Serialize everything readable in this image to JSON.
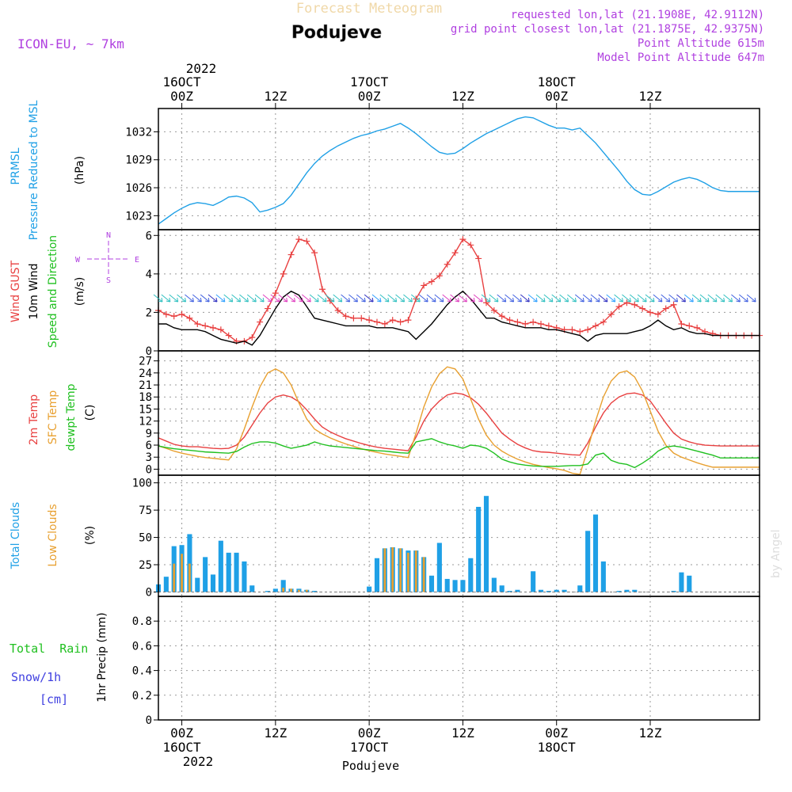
{
  "header": {
    "banner": "Forecast Meteogram",
    "location": "Podujeve",
    "model": "ICON-EU, ~ 7km",
    "requested": "requested lon,lat (21.1908E, 42.9112N)",
    "grid_point": "grid point closest lon,lat (21.1875E, 42.9375N)",
    "point_alt": "Point Altitude 615m",
    "model_alt": "Model Point Altitude 647m",
    "watermark": "by Angel",
    "footer": "Podujeve"
  },
  "colors": {
    "pressure": "#1fa0e6",
    "gust": "#e84040",
    "wind": "#000000",
    "temp2m": "#e84040",
    "sfc": "#e8a030",
    "dew": "#20c020",
    "total_cloud": "#1fa0e6",
    "low_cloud": "#e8a030",
    "rain": "#20c020",
    "snow": "#4040e0",
    "meta": "#b040e0"
  },
  "time_axis": {
    "hours_total": 77,
    "top_year": "2022",
    "bottom_year": "2022",
    "labels": [
      {
        "h": 3,
        "t1": "16OCT",
        "t2": "00Z"
      },
      {
        "h": 15,
        "t1": "",
        "t2": "12Z"
      },
      {
        "h": 27,
        "t1": "17OCT",
        "t2": "00Z"
      },
      {
        "h": 39,
        "t1": "",
        "t2": "12Z"
      },
      {
        "h": 51,
        "t1": "18OCT",
        "t2": "00Z"
      },
      {
        "h": 63,
        "t1": "",
        "t2": "12Z"
      }
    ]
  },
  "compass": {
    "n": "N",
    "s": "S",
    "w": "W",
    "e": "E"
  },
  "chart_data": [
    {
      "type": "line",
      "title": "PRMSL Pressure Reduced to MSL",
      "ylabel": "(hPa)",
      "label_lines": [
        "PRMSL",
        "Pressure Reduced to MSL"
      ],
      "ylim": [
        1021.5,
        1034.5
      ],
      "yticks": [
        1023,
        1026,
        1029,
        1032
      ],
      "series": [
        {
          "name": "PRMSL",
          "color": "#1fa0e6",
          "values": [
            1022.1,
            1022.7,
            1023.3,
            1023.8,
            1024.2,
            1024.4,
            1024.3,
            1024.1,
            1024.5,
            1025.0,
            1025.1,
            1024.9,
            1024.4,
            1023.4,
            1023.6,
            1023.9,
            1024.3,
            1025.2,
            1026.4,
            1027.6,
            1028.6,
            1029.4,
            1030.0,
            1030.5,
            1030.9,
            1031.3,
            1031.6,
            1031.8,
            1032.1,
            1032.3,
            1032.6,
            1032.9,
            1032.4,
            1031.8,
            1031.1,
            1030.4,
            1029.8,
            1029.6,
            1029.7,
            1030.2,
            1030.8,
            1031.3,
            1031.8,
            1032.2,
            1032.6,
            1033.0,
            1033.4,
            1033.6,
            1033.5,
            1033.1,
            1032.7,
            1032.4,
            1032.4,
            1032.2,
            1032.4,
            1031.6,
            1030.8,
            1029.8,
            1028.8,
            1027.8,
            1026.7,
            1025.8,
            1025.3,
            1025.2,
            1025.6,
            1026.1,
            1026.6,
            1026.9,
            1027.1,
            1026.9,
            1026.5,
            1026.0,
            1025.7,
            1025.6,
            1025.6,
            1025.6,
            1025.6,
            1025.6
          ]
        }
      ]
    },
    {
      "type": "line",
      "title": "Wind GUST / 10m Wind Speed and Direction",
      "ylabel": "(m/s)",
      "label_lines": [
        "Wind GUST",
        "10m Wind",
        "Speed and Direction"
      ],
      "ylim": [
        0,
        6.3
      ],
      "yticks": [
        0,
        2,
        4,
        6
      ],
      "series": [
        {
          "name": "Wind GUST",
          "color": "#e84040",
          "marker": "+",
          "values": [
            2.1,
            1.9,
            1.8,
            1.9,
            1.7,
            1.4,
            1.3,
            1.2,
            1.1,
            0.8,
            0.5,
            0.5,
            0.7,
            1.5,
            2.2,
            3.0,
            4.0,
            5.0,
            5.8,
            5.7,
            5.1,
            3.2,
            2.6,
            2.1,
            1.8,
            1.7,
            1.7,
            1.6,
            1.5,
            1.4,
            1.6,
            1.5,
            1.6,
            2.7,
            3.4,
            3.6,
            3.9,
            4.5,
            5.1,
            5.8,
            5.5,
            4.8,
            2.5,
            2.1,
            1.8,
            1.6,
            1.5,
            1.4,
            1.5,
            1.4,
            1.3,
            1.2,
            1.1,
            1.1,
            1.0,
            1.1,
            1.3,
            1.5,
            1.9,
            2.3,
            2.5,
            2.4,
            2.2,
            2.0,
            1.9,
            2.2,
            2.4,
            1.4,
            1.3,
            1.2,
            1.0,
            0.9,
            0.8,
            0.8,
            0.8,
            0.8,
            0.8,
            0.8
          ]
        },
        {
          "name": "10m Wind",
          "color": "#000000",
          "values": [
            1.4,
            1.4,
            1.2,
            1.1,
            1.1,
            1.1,
            1.0,
            0.8,
            0.6,
            0.5,
            0.4,
            0.5,
            0.3,
            0.8,
            1.5,
            2.2,
            2.8,
            3.1,
            2.9,
            2.3,
            1.7,
            1.6,
            1.5,
            1.4,
            1.3,
            1.3,
            1.3,
            1.3,
            1.2,
            1.2,
            1.2,
            1.1,
            1.0,
            0.6,
            1.0,
            1.4,
            1.9,
            2.4,
            2.8,
            3.1,
            2.7,
            2.2,
            1.7,
            1.7,
            1.5,
            1.4,
            1.3,
            1.2,
            1.2,
            1.2,
            1.1,
            1.1,
            1.0,
            0.9,
            0.8,
            0.5,
            0.8,
            0.9,
            0.9,
            0.9,
            0.9,
            1.0,
            1.1,
            1.3,
            1.6,
            1.3,
            1.1,
            1.2,
            1.0,
            0.9,
            0.9,
            0.8,
            0.8,
            0.8,
            0.8,
            0.8,
            0.8,
            0.8
          ]
        }
      ]
    },
    {
      "type": "line",
      "title": "2m Temp / SFC Temp / dewpt Temp",
      "ylabel": "(C)",
      "label_lines": [
        "2m Temp",
        "SFC Temp",
        "dewpt Temp"
      ],
      "ylim": [
        -1.5,
        29.5
      ],
      "yticks": [
        0,
        3,
        6,
        9,
        12,
        15,
        18,
        21,
        24,
        27
      ],
      "series": [
        {
          "name": "2m Temp",
          "color": "#e84040",
          "values": [
            7.8,
            7.0,
            6.2,
            5.8,
            5.6,
            5.6,
            5.4,
            5.2,
            5.1,
            5.2,
            6.0,
            8.0,
            11.0,
            14.0,
            16.5,
            18.0,
            18.5,
            18.0,
            16.8,
            14.8,
            12.5,
            10.5,
            9.3,
            8.4,
            7.6,
            7.0,
            6.4,
            5.9,
            5.5,
            5.2,
            5.0,
            4.8,
            4.6,
            8.0,
            12.0,
            15.0,
            17.0,
            18.5,
            19.0,
            18.7,
            17.8,
            16.2,
            14.0,
            11.5,
            9.0,
            7.5,
            6.2,
            5.3,
            4.6,
            4.3,
            4.2,
            4.0,
            3.8,
            3.6,
            3.5,
            6.5,
            10.5,
            14.0,
            16.5,
            18.0,
            18.8,
            19.0,
            18.5,
            17.0,
            14.3,
            11.5,
            9.0,
            7.5,
            6.8,
            6.3,
            6.0,
            5.9,
            5.8,
            5.8,
            5.8,
            5.8,
            5.8,
            5.8
          ]
        },
        {
          "name": "SFC Temp",
          "color": "#e8a030",
          "values": [
            5.8,
            5.2,
            4.5,
            4.0,
            3.6,
            3.2,
            2.9,
            2.7,
            2.5,
            2.3,
            5.0,
            10.0,
            15.5,
            20.5,
            24.0,
            25.0,
            24.0,
            21.0,
            16.5,
            12.5,
            10.0,
            8.8,
            7.8,
            7.0,
            6.3,
            5.7,
            5.1,
            4.6,
            4.2,
            3.8,
            3.5,
            3.2,
            2.9,
            9.0,
            15.5,
            20.5,
            23.8,
            25.5,
            25.0,
            22.5,
            17.5,
            12.5,
            8.5,
            6.0,
            4.5,
            3.4,
            2.5,
            1.8,
            1.2,
            0.8,
            0.4,
            0.1,
            -0.3,
            -1.0,
            -1.3,
            5.0,
            12.0,
            18.0,
            22.0,
            24.0,
            24.5,
            23.0,
            19.5,
            14.5,
            9.5,
            6.0,
            4.0,
            3.0,
            2.3,
            1.6,
            1.0,
            0.5,
            0.5,
            0.5,
            0.5,
            0.5,
            0.5,
            0.5
          ]
        },
        {
          "name": "dewpt Temp",
          "color": "#20c020",
          "values": [
            5.8,
            5.4,
            5.1,
            4.9,
            4.7,
            4.5,
            4.3,
            4.2,
            4.1,
            4.0,
            4.4,
            5.5,
            6.4,
            6.8,
            6.8,
            6.5,
            5.8,
            5.2,
            5.6,
            6.0,
            6.8,
            6.2,
            5.8,
            5.6,
            5.4,
            5.2,
            5.0,
            4.8,
            4.6,
            4.5,
            4.3,
            4.1,
            4.0,
            6.8,
            7.2,
            7.6,
            6.8,
            6.2,
            5.8,
            5.2,
            6.0,
            5.8,
            5.2,
            4.0,
            2.5,
            1.8,
            1.3,
            1.0,
            0.8,
            0.7,
            0.7,
            0.7,
            0.8,
            0.9,
            0.9,
            1.3,
            3.5,
            4.0,
            2.2,
            1.5,
            1.2,
            0.4,
            1.5,
            2.8,
            4.5,
            5.5,
            5.8,
            5.5,
            5.0,
            4.5,
            4.0,
            3.5,
            2.8,
            2.8,
            2.8,
            2.8,
            2.8,
            2.8
          ]
        }
      ]
    },
    {
      "type": "bar",
      "title": "Total Clouds / Low Clouds",
      "ylabel": "(%)",
      "label_lines": [
        "Total Clouds",
        "Low Clouds"
      ],
      "ylim": [
        -4,
        107
      ],
      "yticks": [
        0,
        25,
        50,
        75,
        100
      ],
      "series": [
        {
          "name": "Total Clouds",
          "color": "#1fa0e6",
          "values": [
            7,
            14,
            42,
            43,
            53,
            13,
            32,
            16,
            47,
            36,
            36,
            28,
            6,
            0,
            1,
            3,
            11,
            3,
            3,
            2,
            1,
            0,
            0,
            0,
            0,
            0,
            0,
            5,
            31,
            40,
            41,
            40,
            38,
            38,
            32,
            15,
            45,
            12,
            11,
            11,
            31,
            78,
            88,
            13,
            6,
            1,
            2,
            0,
            19,
            2,
            1,
            2,
            2,
            0,
            6,
            56,
            71,
            28,
            0,
            1,
            2,
            2,
            0,
            0,
            0,
            0,
            1,
            18,
            15,
            0,
            0,
            0,
            0,
            0,
            0,
            0,
            0
          ]
        },
        {
          "name": "Low Clouds",
          "color": "#e8a030",
          "values": [
            0,
            0,
            26,
            35,
            26,
            0,
            0,
            0,
            0,
            0,
            0,
            0,
            0,
            0,
            0,
            0,
            4,
            3,
            2,
            2,
            0,
            0,
            0,
            0,
            0,
            0,
            0,
            0,
            0,
            40,
            41,
            40,
            36,
            38,
            32,
            0,
            0,
            0,
            0,
            0,
            0,
            0,
            0,
            0,
            0,
            0,
            0,
            0,
            0,
            0,
            0,
            0,
            0,
            0,
            0,
            0,
            0,
            0,
            0,
            0,
            0,
            0,
            0,
            0,
            0,
            0,
            0,
            0,
            0,
            0,
            0,
            0,
            0,
            0,
            0,
            0,
            0
          ]
        }
      ]
    },
    {
      "type": "bar",
      "title": "Total Rain Snow/1h",
      "ylabel": "1hr Precip (mm)",
      "label_lines": [
        "Total  Rain",
        "Snow/1h",
        "[cm]"
      ],
      "ylim": [
        0,
        1.0
      ],
      "yticks": [
        0,
        0.2,
        0.4,
        0.6,
        0.8
      ],
      "series": [
        {
          "name": "Total Rain",
          "color": "#20c020",
          "values": []
        },
        {
          "name": "Snow/1h",
          "color": "#4040e0",
          "values": []
        }
      ]
    }
  ]
}
